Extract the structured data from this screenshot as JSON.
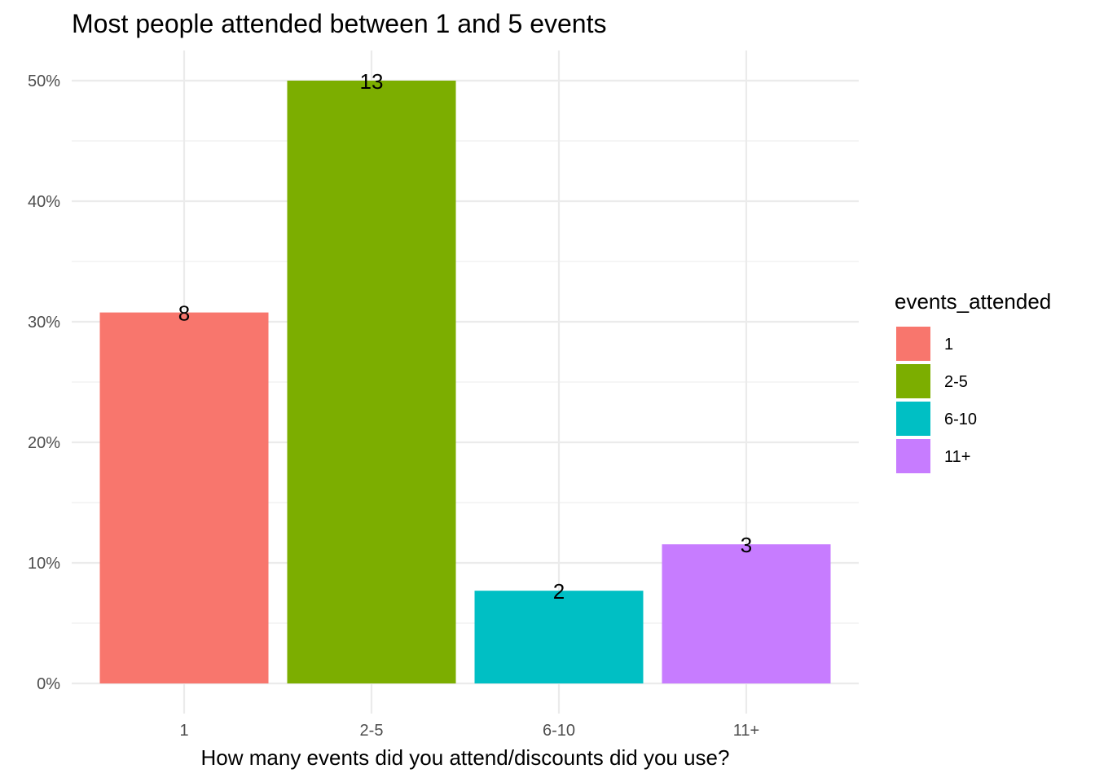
{
  "chart_data": {
    "type": "bar",
    "title": "Most people attended between 1 and 5 events",
    "xlabel": "How many events did you attend/discounts did you use?",
    "ylabel": "",
    "categories": [
      "1",
      "2-5",
      "6-10",
      "11+"
    ],
    "values": [
      30.77,
      50.0,
      7.69,
      11.54
    ],
    "counts": [
      "8",
      "13",
      "2",
      "3"
    ],
    "colors": [
      "#F8766D",
      "#7CAE00",
      "#00BFC4",
      "#C77CFF"
    ],
    "ylim": [
      0,
      50
    ],
    "yticks": [
      0,
      10,
      20,
      30,
      40,
      50
    ],
    "ytick_labels": [
      "0%",
      "10%",
      "20%",
      "30%",
      "40%",
      "50%"
    ],
    "grid": true,
    "legend": {
      "title": "events_attended",
      "position": "right",
      "entries": [
        "1",
        "2-5",
        "6-10",
        "11+"
      ]
    }
  }
}
